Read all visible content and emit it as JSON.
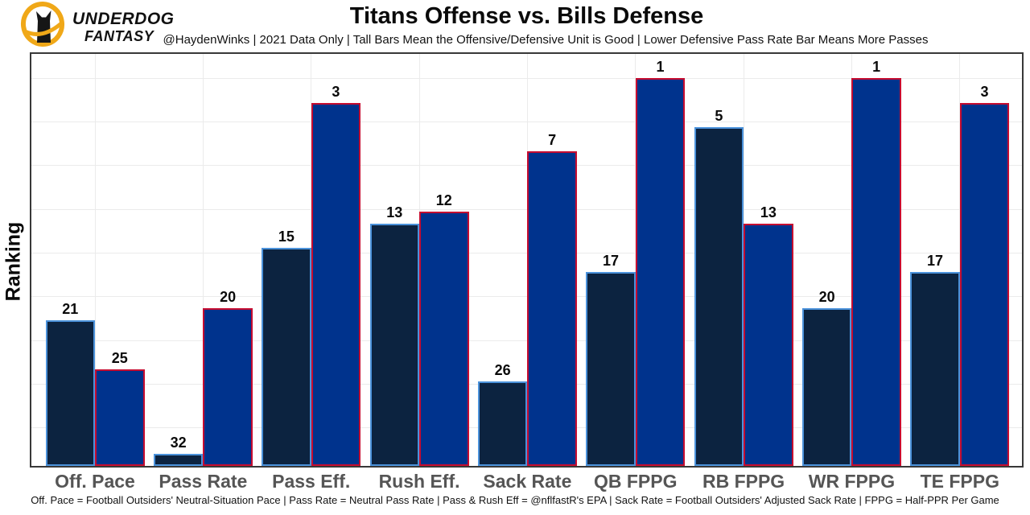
{
  "brand": {
    "line1": "UNDERDOG",
    "line2": "FANTASY",
    "logo_gold": "#F0A818",
    "logo_black": "#161616"
  },
  "header": {
    "title": "Titans Offense vs. Bills Defense",
    "subtitle": "@HaydenWinks | 2021 Data Only | Tall Bars Mean the Offensive/Defensive Unit is Good | Lower Defensive Pass Rate Bar Means More Passes"
  },
  "chart_data": {
    "type": "bar",
    "title": "Titans Offense vs. Bills Defense",
    "xlabel": "",
    "ylabel": "Ranking",
    "categories": [
      "Off. Pace",
      "Pass Rate",
      "Pass Eff.",
      "Rush Eff.",
      "Sack Rate",
      "QB FPPG",
      "RB FPPG",
      "WR FPPG",
      "TE FPPG"
    ],
    "series": [
      {
        "name": "Titans Offense",
        "ranks": [
          21,
          32,
          15,
          13,
          26,
          17,
          5,
          20,
          17
        ],
        "fill": "#0C2340",
        "border": "#4B92DB"
      },
      {
        "name": "Bills Defense",
        "ranks": [
          25,
          20,
          3,
          12,
          7,
          1,
          13,
          1,
          3
        ],
        "fill": "#00338D",
        "border": "#C60C30"
      }
    ],
    "value_note": "labels show NFL rank (1-32); bar height = 33 - rank, so rank 1 is tallest",
    "ylim": [
      0,
      34
    ],
    "grid": true,
    "legend_position": "none",
    "data_labels": true
  },
  "footer": {
    "caption": "Off. Pace = Football Outsiders' Neutral-Situation Pace | Pass Rate = Neutral Pass Rate | Pass & Rush Eff = @nflfastR's EPA | Sack Rate = Football Outsiders' Adjusted Sack Rate | FPPG = Half-PPR Per Game"
  }
}
